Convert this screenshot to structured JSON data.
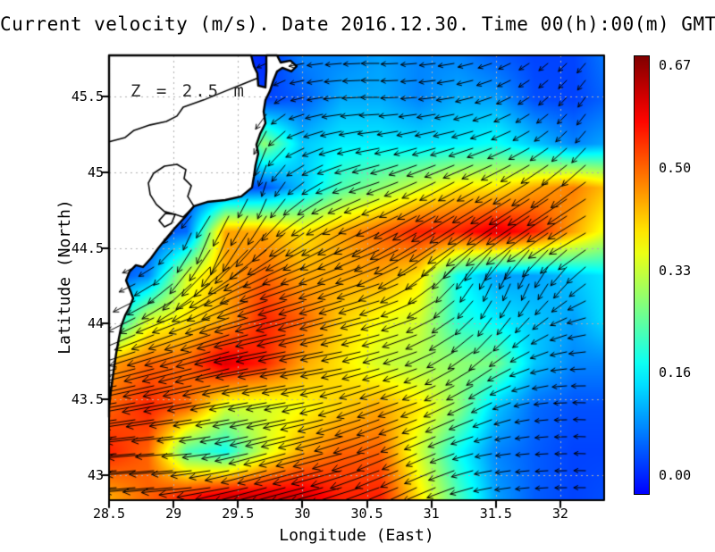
{
  "chart_data": {
    "type": "vector_field_map",
    "title": "Current velocity (m/s). Date 2016.12.30. Time 00(h):00(m) GMT",
    "annotation": "Z = 2.5 m",
    "xlabel": "Longitude (East)",
    "ylabel": "Latitude (North)",
    "xlim": [
      28.5,
      32.34
    ],
    "ylim": [
      42.835,
      45.771
    ],
    "x_ticks": [
      "28.5",
      "29",
      "29.5",
      "30",
      "30.5",
      "31",
      "31.5",
      "32"
    ],
    "y_ticks": [
      "45.5",
      "45",
      "44.5",
      "44",
      "43.5",
      "43"
    ],
    "grid": true,
    "grid_color": "#b0b0b0",
    "land_fill": "#ffffff",
    "coast_color": "#000000",
    "arrow_color": "#000000",
    "colorbar": {
      "colormap": "jet",
      "vmin": 0.0,
      "vmax": 0.67,
      "label_values": [
        "0.67",
        "0.50",
        "0.33",
        "0.16",
        "0.00"
      ]
    },
    "speed_grid": {
      "units": "m/s",
      "lons": [
        28.5,
        28.8,
        29.1,
        29.4,
        29.7,
        30.0,
        30.3,
        30.6,
        30.9,
        31.2,
        31.5,
        31.8,
        32.1,
        32.4
      ],
      "lats": [
        45.77,
        45.48,
        45.19,
        44.9,
        44.61,
        44.32,
        44.03,
        43.74,
        43.45,
        43.16,
        42.87
      ],
      "values": [
        [
          0.05,
          0.05,
          0.05,
          0.05,
          0.03,
          0.1,
          0.1,
          0.12,
          0.1,
          0.1,
          0.07,
          0.05,
          0.05,
          0.1
        ],
        [
          0.05,
          0.05,
          0.05,
          0.05,
          0.05,
          0.07,
          0.13,
          0.13,
          0.1,
          0.13,
          0.12,
          0.06,
          0.05,
          0.08
        ],
        [
          0.05,
          0.05,
          0.05,
          0.08,
          0.3,
          0.15,
          0.18,
          0.18,
          0.17,
          0.18,
          0.2,
          0.15,
          0.1,
          0.13
        ],
        [
          0.05,
          0.05,
          0.05,
          0.05,
          0.06,
          0.15,
          0.25,
          0.3,
          0.35,
          0.4,
          0.4,
          0.45,
          0.48,
          0.42
        ],
        [
          0.05,
          0.05,
          0.08,
          0.45,
          0.45,
          0.4,
          0.45,
          0.5,
          0.55,
          0.55,
          0.6,
          0.55,
          0.45,
          0.35
        ],
        [
          0.05,
          0.1,
          0.35,
          0.45,
          0.5,
          0.45,
          0.45,
          0.45,
          0.4,
          0.2,
          0.12,
          0.12,
          0.15,
          0.18
        ],
        [
          0.15,
          0.35,
          0.4,
          0.45,
          0.55,
          0.5,
          0.42,
          0.38,
          0.35,
          0.22,
          0.18,
          0.15,
          0.12,
          0.18
        ],
        [
          0.45,
          0.5,
          0.5,
          0.6,
          0.55,
          0.45,
          0.4,
          0.35,
          0.32,
          0.3,
          0.28,
          0.15,
          0.1,
          0.1
        ],
        [
          0.5,
          0.55,
          0.5,
          0.35,
          0.35,
          0.38,
          0.42,
          0.45,
          0.4,
          0.3,
          0.15,
          0.08,
          0.06,
          0.06
        ],
        [
          0.55,
          0.5,
          0.25,
          0.2,
          0.35,
          0.45,
          0.5,
          0.5,
          0.35,
          0.2,
          0.1,
          0.07,
          0.05,
          0.05
        ],
        [
          0.45,
          0.5,
          0.55,
          0.6,
          0.6,
          0.6,
          0.55,
          0.55,
          0.4,
          0.25,
          0.12,
          0.07,
          0.05,
          0.06
        ]
      ]
    },
    "direction_grid": {
      "convention": "degrees CCW from east, direction of flow",
      "values": [
        [
          180,
          180,
          180,
          180,
          200,
          190,
          185,
          180,
          185,
          190,
          200,
          215,
          225,
          235
        ],
        [
          180,
          180,
          180,
          185,
          230,
          195,
          185,
          180,
          185,
          190,
          200,
          215,
          230,
          240
        ],
        [
          190,
          190,
          190,
          200,
          250,
          205,
          195,
          190,
          195,
          195,
          200,
          210,
          225,
          235
        ],
        [
          200,
          200,
          200,
          230,
          255,
          220,
          205,
          200,
          205,
          210,
          210,
          212,
          215,
          215
        ],
        [
          200,
          200,
          245,
          250,
          230,
          215,
          210,
          205,
          210,
          212,
          215,
          215,
          212,
          205
        ],
        [
          200,
          210,
          230,
          215,
          205,
          200,
          200,
          200,
          210,
          230,
          250,
          250,
          230,
          210
        ],
        [
          210,
          205,
          200,
          200,
          195,
          195,
          195,
          195,
          200,
          215,
          235,
          225,
          200,
          185
        ],
        [
          195,
          195,
          195,
          195,
          190,
          190,
          190,
          195,
          200,
          210,
          215,
          200,
          185,
          180
        ],
        [
          190,
          190,
          190,
          190,
          190,
          190,
          195,
          200,
          200,
          205,
          205,
          190,
          180,
          175
        ],
        [
          185,
          185,
          185,
          190,
          195,
          195,
          195,
          200,
          205,
          200,
          190,
          185,
          180,
          175
        ],
        [
          185,
          185,
          185,
          190,
          195,
          195,
          195,
          200,
          205,
          200,
          190,
          185,
          180,
          180
        ]
      ]
    },
    "coastline": [
      [
        28.5,
        45.771
      ],
      [
        29.602,
        45.771
      ],
      [
        29.623,
        45.7
      ],
      [
        29.65,
        45.653
      ],
      [
        29.657,
        45.571
      ],
      [
        29.713,
        45.559
      ],
      [
        29.72,
        45.665
      ],
      [
        29.72,
        45.771
      ],
      [
        29.803,
        45.771
      ],
      [
        29.831,
        45.724
      ],
      [
        29.907,
        45.736
      ],
      [
        29.955,
        45.7
      ],
      [
        29.914,
        45.665
      ],
      [
        29.844,
        45.689
      ],
      [
        29.803,
        45.665
      ],
      [
        29.775,
        45.606
      ],
      [
        29.747,
        45.535
      ],
      [
        29.713,
        45.476
      ],
      [
        29.699,
        45.4
      ],
      [
        29.713,
        45.323
      ],
      [
        29.671,
        45.252
      ],
      [
        29.643,
        45.182
      ],
      [
        29.657,
        45.123
      ],
      [
        29.636,
        45.046
      ],
      [
        29.623,
        44.969
      ],
      [
        29.609,
        44.899
      ],
      [
        29.526,
        44.84
      ],
      [
        29.401,
        44.816
      ],
      [
        29.262,
        44.804
      ],
      [
        29.158,
        44.775
      ],
      [
        29.089,
        44.704
      ],
      [
        29.006,
        44.627
      ],
      [
        28.937,
        44.557
      ],
      [
        28.881,
        44.498
      ],
      [
        28.826,
        44.433
      ],
      [
        28.763,
        44.374
      ],
      [
        28.708,
        44.386
      ],
      [
        28.659,
        44.344
      ],
      [
        28.632,
        44.285
      ],
      [
        28.666,
        44.215
      ],
      [
        28.687,
        44.167
      ],
      [
        28.659,
        44.108
      ],
      [
        28.625,
        44.055
      ],
      [
        28.597,
        43.99
      ],
      [
        28.576,
        43.902
      ],
      [
        28.555,
        43.802
      ],
      [
        28.535,
        43.684
      ],
      [
        28.514,
        43.554
      ],
      [
        28.5,
        43.448
      ],
      [
        28.5,
        43.383
      ]
    ],
    "river": [
      [
        29.643,
        45.618
      ],
      [
        29.54,
        45.583
      ],
      [
        29.387,
        45.53
      ],
      [
        29.235,
        45.477
      ],
      [
        29.075,
        45.429
      ],
      [
        29.027,
        45.371
      ],
      [
        28.944,
        45.335
      ],
      [
        28.819,
        45.312
      ],
      [
        28.694,
        45.276
      ],
      [
        28.625,
        45.229
      ],
      [
        28.5,
        45.2
      ]
    ],
    "lagoons": [
      [
        [
          29.158,
          44.775
        ],
        [
          29.11,
          44.84
        ],
        [
          29.138,
          44.911
        ],
        [
          29.082,
          44.958
        ],
        [
          29.096,
          45.017
        ],
        [
          29.027,
          45.052
        ],
        [
          28.93,
          45.04
        ],
        [
          28.846,
          44.993
        ],
        [
          28.805,
          44.928
        ],
        [
          28.819,
          44.852
        ],
        [
          28.867,
          44.787
        ],
        [
          28.93,
          44.74
        ],
        [
          29.013,
          44.722
        ],
        [
          29.075,
          44.704
        ]
      ],
      [
        [
          29.013,
          44.722
        ],
        [
          28.985,
          44.663
        ],
        [
          28.93,
          44.639
        ],
        [
          28.888,
          44.681
        ],
        [
          28.937,
          44.728
        ]
      ]
    ]
  }
}
